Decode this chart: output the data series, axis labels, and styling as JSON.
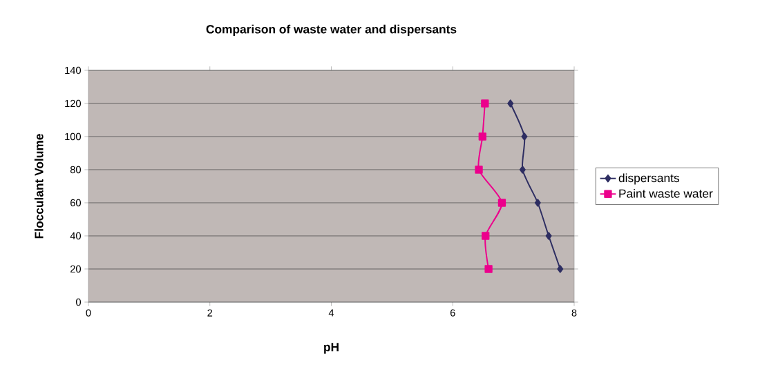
{
  "chart_data": {
    "type": "line",
    "title": "Comparison of waste water and dispersants",
    "xlabel": "pH",
    "ylabel": "Flocculant Volume",
    "xlim": [
      0,
      8
    ],
    "xticks": [
      0,
      2,
      4,
      6,
      8
    ],
    "ylim": [
      0,
      140
    ],
    "yticks": [
      0,
      20,
      40,
      60,
      80,
      100,
      120,
      140
    ],
    "grid": "y",
    "legend": "right",
    "line_style": "solid",
    "series": [
      {
        "name": "dispersants",
        "color": "#2e2e62",
        "marker": "diamond",
        "x": [
          6.95,
          7.18,
          7.15,
          7.4,
          7.58,
          7.77
        ],
        "values": [
          120,
          100,
          80,
          60,
          40,
          20
        ]
      },
      {
        "name": "Paint waste water",
        "color": "#ec008c",
        "marker": "square",
        "x": [
          6.53,
          6.49,
          6.43,
          6.81,
          6.54,
          6.59
        ],
        "values": [
          120,
          100,
          80,
          60,
          40,
          20
        ]
      }
    ]
  }
}
